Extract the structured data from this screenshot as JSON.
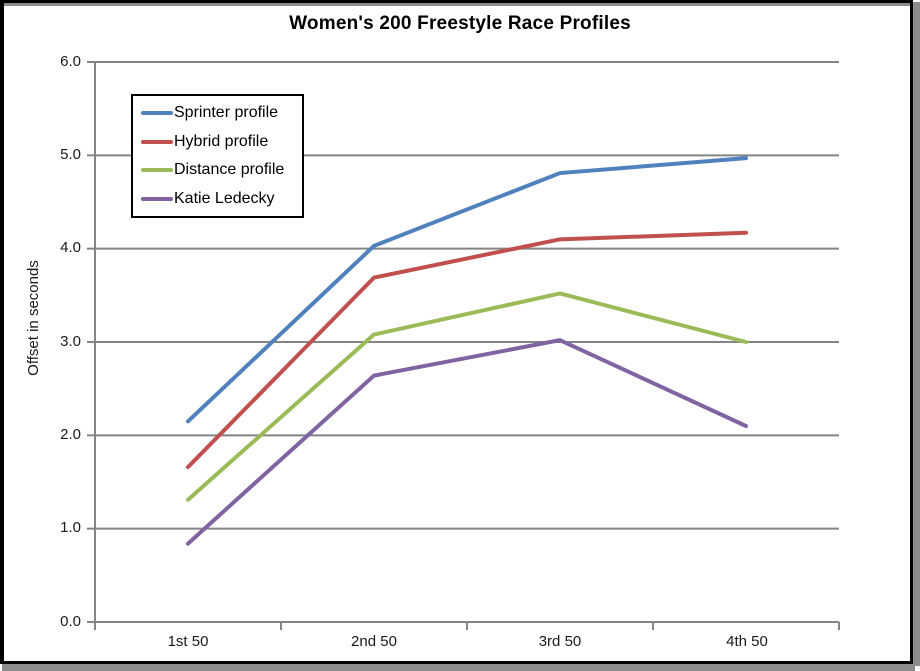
{
  "window": {
    "background": "#ffffff",
    "frame_border_color": "#000000",
    "frame_shadow_color": "#8c8c8c"
  },
  "chart_data": {
    "type": "line",
    "title": "Women's 200 Freestyle Race Profiles",
    "xlabel": "",
    "ylabel": "Offset in seconds",
    "categories": [
      "1st 50",
      "2nd 50",
      "3rd 50",
      "4th 50"
    ],
    "series": [
      {
        "name": "Sprinter profile",
        "color": "#4F81BD",
        "values": [
          2.15,
          4.03,
          4.81,
          4.97
        ]
      },
      {
        "name": "Hybrid profile",
        "color": "#C0504D",
        "values": [
          1.66,
          3.69,
          4.1,
          4.17
        ]
      },
      {
        "name": "Distance profile",
        "color": "#9BBB59",
        "values": [
          1.31,
          3.08,
          3.52,
          3.0
        ]
      },
      {
        "name": "Katie Ledecky",
        "color": "#8064A2",
        "values": [
          0.84,
          2.64,
          3.02,
          2.1
        ]
      }
    ],
    "ylim": [
      0.0,
      6.0
    ],
    "y_tick_step": 1.0,
    "y_tick_labels": [
      "6.0",
      "5.0",
      "4.0",
      "3.0",
      "2.0",
      "1.0",
      "0.0"
    ],
    "grid": true,
    "gridline_color": "#858585",
    "legend_position": "upper-left-inside"
  }
}
